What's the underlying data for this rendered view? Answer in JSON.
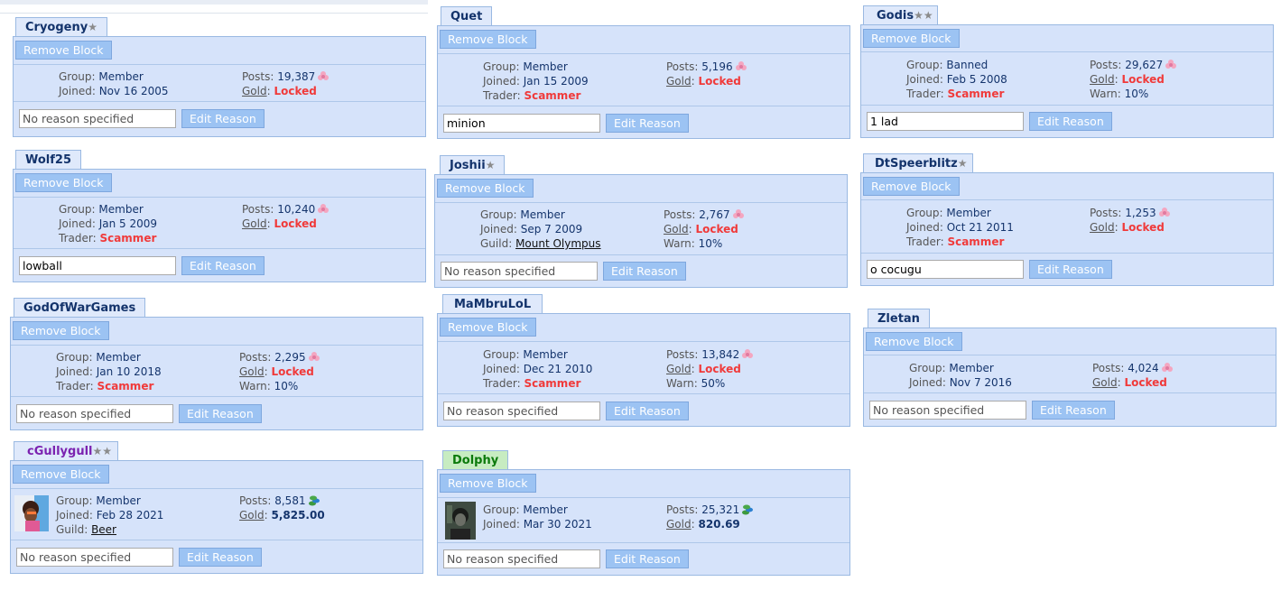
{
  "remove_label": "Remove Block",
  "edit_label": "Edit Reason",
  "placeholder": "No reason specified",
  "labels": {
    "group": "Group:",
    "joined": "Joined:",
    "trader": "Trader:",
    "guild": "Guild:",
    "posts": "Posts:",
    "gold": "Gold",
    "colon": ":",
    "warn": "Warn:"
  },
  "colors": {
    "tab_bg": "#dfe9fb",
    "box_bg": "#d6e3fa",
    "border": "#9ab9e2",
    "button": "#9cc3f3",
    "locked": "#f03a3a",
    "username": "#13336b"
  },
  "users": [
    {
      "name": "Cryogeny",
      "stars": "★",
      "group": "Member",
      "joined": "Nov 16 2005",
      "posts": "19,387",
      "gold": "Locked",
      "reason": ""
    },
    {
      "name": "Wolf25",
      "stars": "",
      "group": "Member",
      "joined": "Jan 5 2009",
      "trader": "Scammer",
      "posts": "10,240",
      "gold": "Locked",
      "reason": "lowball"
    },
    {
      "name": "GodOfWarGames",
      "stars": "",
      "group": "Member",
      "joined": "Jan 10 2018",
      "trader": "Scammer",
      "posts": "2,295",
      "gold": "Locked",
      "warn": "10%",
      "reason": ""
    },
    {
      "name": "cGullygull",
      "stars": "★★",
      "group": "Member",
      "joined": "Feb 28 2021",
      "guild": "Beer",
      "posts": "8,581",
      "gold": "5,825.00",
      "reason": ""
    },
    {
      "name": "Quet",
      "stars": "",
      "group": "Member",
      "joined": "Jan 15 2009",
      "trader": "Scammer",
      "posts": "5,196",
      "gold": "Locked",
      "reason": "minion"
    },
    {
      "name": "Joshii",
      "stars": "★",
      "group": "Member",
      "joined": "Sep 7 2009",
      "guild": "Mount Olympus",
      "posts": "2,767",
      "gold": "Locked",
      "warn": "10%",
      "reason": ""
    },
    {
      "name": "MaMbruLoL",
      "stars": "",
      "group": "Member",
      "joined": "Dec 21 2010",
      "trader": "Scammer",
      "posts": "13,842",
      "gold": "Locked",
      "warn": "50%",
      "reason": ""
    },
    {
      "name": "Dolphy",
      "stars": "",
      "group": "Member",
      "joined": "Mar 30 2021",
      "posts": "25,321",
      "gold": "820.69",
      "reason": ""
    },
    {
      "name": "Godis",
      "stars": "★★",
      "group": "Banned",
      "joined": "Feb 5 2008",
      "trader": "Scammer",
      "posts": "29,627",
      "gold": "Locked",
      "warn": "10%",
      "reason": "1 lad"
    },
    {
      "name": "DtSpeerblitz",
      "stars": "★",
      "group": "Member",
      "joined": "Oct 21 2011",
      "trader": "Scammer",
      "posts": "1,253",
      "gold": "Locked",
      "reason": "o cocugu"
    },
    {
      "name": "Zletan",
      "stars": "",
      "group": "Member",
      "joined": "Nov 7 2016",
      "posts": "4,024",
      "gold": "Locked",
      "reason": ""
    }
  ]
}
